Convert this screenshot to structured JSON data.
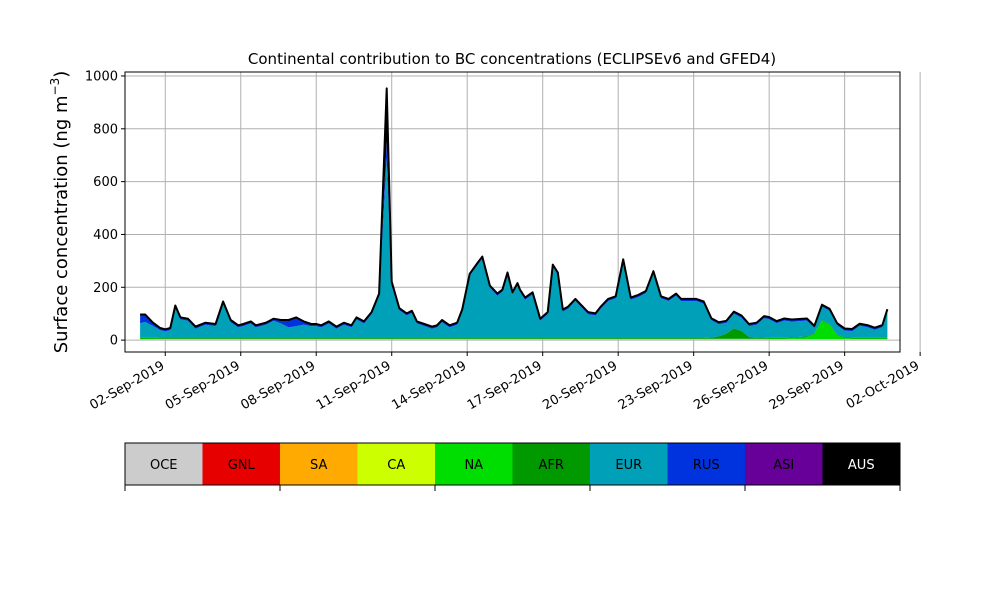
{
  "chart_data": {
    "type": "area",
    "stacked": true,
    "title": "Continental contribution to BC concentrations (ECLIPSEv6 and GFED4)",
    "xlabel": "",
    "ylabel": "Surface concentration (ng m",
    "ylabel_exponent": "−3",
    "ylabel_close": ")",
    "ylim": [
      -45,
      1015
    ],
    "xlim_day": [
      -0.6,
      30.2
    ],
    "yticks": [
      0,
      200,
      400,
      600,
      800,
      1000
    ],
    "ytick_labels": [
      "0",
      "200",
      "400",
      "600",
      "800",
      "1000"
    ],
    "xticks_day": [
      1,
      4,
      7,
      10,
      13,
      16,
      19,
      22,
      25,
      28,
      31
    ],
    "xtick_labels": [
      "02-Sep-2019",
      "05-Sep-2019",
      "08-Sep-2019",
      "11-Sep-2019",
      "14-Sep-2019",
      "17-Sep-2019",
      "20-Sep-2019",
      "23-Sep-2019",
      "26-Sep-2019",
      "29-Sep-2019",
      "02-Oct-2019"
    ],
    "grid": true,
    "x_unit": "days since 01-Sep-2019 00:00",
    "total_line_color": "#000000",
    "days": [
      0,
      0.2,
      0.5,
      0.8,
      1,
      1.2,
      1.4,
      1.6,
      1.9,
      2.2,
      2.6,
      3,
      3.3,
      3.6,
      3.9,
      4.1,
      4.4,
      4.6,
      4.8,
      5,
      5.3,
      5.6,
      5.9,
      6.2,
      6.5,
      6.8,
      7,
      7.2,
      7.5,
      7.8,
      8.1,
      8.4,
      8.6,
      8.9,
      9.2,
      9.5,
      9.8,
      10,
      10.3,
      10.6,
      10.8,
      11,
      11.3,
      11.6,
      11.8,
      12,
      12.3,
      12.6,
      12.8,
      13.1,
      13.4,
      13.6,
      13.9,
      14.2,
      14.4,
      14.6,
      14.8,
      15,
      15.1,
      15.3,
      15.6,
      15.9,
      16.2,
      16.4,
      16.6,
      16.8,
      17,
      17.3,
      17.5,
      17.8,
      18.1,
      18.3,
      18.6,
      18.9,
      19.2,
      19.5,
      19.8,
      20.1,
      20.4,
      20.7,
      21,
      21.3,
      21.5,
      21.8,
      22.1,
      22.4,
      22.7,
      23,
      23.3,
      23.6,
      23.9,
      24.2,
      24.5,
      24.8,
      25,
      25.3,
      25.6,
      25.9,
      26.2,
      26.5,
      26.8,
      27.1,
      27.4,
      27.7,
      28,
      28.3,
      28.6,
      28.9,
      29.2,
      29.5,
      29.7
    ],
    "series": [
      {
        "name": "OCE",
        "color": "#cccccc",
        "values": [
          2,
          2,
          2,
          2,
          2,
          2,
          2,
          2,
          2,
          2,
          2,
          2,
          2,
          2,
          2,
          2,
          2,
          2,
          2,
          2,
          2,
          2,
          2,
          2,
          2,
          2,
          2,
          2,
          2,
          2,
          2,
          2,
          2,
          2,
          2,
          2,
          2,
          2,
          2,
          2,
          2,
          2,
          2,
          2,
          2,
          2,
          2,
          2,
          2,
          2,
          2,
          2,
          2,
          2,
          2,
          2,
          2,
          2,
          2,
          2,
          2,
          2,
          2,
          2,
          2,
          2,
          2,
          2,
          2,
          2,
          2,
          2,
          2,
          2,
          2,
          2,
          2,
          2,
          2,
          2,
          2,
          2,
          2,
          2,
          2,
          2,
          2,
          2,
          2,
          2,
          2,
          2,
          2,
          2,
          2,
          2,
          2,
          2,
          2,
          2,
          2,
          2,
          2,
          2,
          2,
          2,
          2,
          2,
          2,
          2,
          2
        ]
      },
      {
        "name": "GNL",
        "color": "#e60000",
        "values": [
          0,
          0,
          0,
          0,
          0,
          0,
          0,
          0,
          0,
          0,
          0,
          0,
          0,
          0,
          0,
          0,
          0,
          0,
          0,
          0,
          0,
          0,
          0,
          0,
          0,
          0,
          0,
          0,
          0,
          0,
          0,
          0,
          0,
          0,
          0,
          0,
          0,
          0,
          0,
          0,
          0,
          0,
          0,
          0,
          0,
          0,
          0,
          0,
          0,
          0,
          0,
          0,
          0,
          0,
          0,
          0,
          0,
          0,
          0,
          0,
          0,
          0,
          0,
          0,
          0,
          0,
          0,
          0,
          0,
          0,
          0,
          0,
          0,
          0,
          0,
          0,
          0,
          0,
          0,
          0,
          0,
          0,
          0,
          0,
          0,
          0,
          0,
          0,
          0,
          0,
          0,
          0,
          0,
          0,
          0,
          0,
          0,
          0,
          0,
          0,
          0,
          0,
          0,
          0,
          0,
          0,
          0,
          0,
          0,
          0,
          0
        ]
      },
      {
        "name": "SA",
        "color": "#ffaa00",
        "values": [
          0,
          0,
          0,
          0,
          0,
          0,
          0,
          0,
          0,
          0,
          0,
          0,
          0,
          0,
          0,
          0,
          0,
          0,
          0,
          0,
          0,
          0,
          0,
          0,
          0,
          0,
          0,
          0,
          0,
          0,
          0,
          0,
          0,
          0,
          0,
          0,
          0,
          0,
          0,
          0,
          0,
          0,
          0,
          0,
          0,
          0,
          0,
          0,
          0,
          0,
          0,
          0,
          0,
          0,
          0,
          0,
          0,
          0,
          0,
          0,
          0,
          0,
          0,
          0,
          0,
          0,
          0,
          0,
          0,
          0,
          0,
          0,
          0,
          0,
          0,
          0,
          0,
          0,
          0,
          0,
          0,
          0,
          0,
          0,
          0,
          0,
          0,
          0,
          0,
          0,
          0,
          0,
          0,
          0,
          0,
          0,
          0,
          0,
          0,
          0,
          0,
          0,
          0,
          0,
          0,
          0,
          0,
          0,
          0,
          0,
          0
        ]
      },
      {
        "name": "CA",
        "color": "#ccff00",
        "values": [
          1,
          1,
          1,
          1,
          1,
          1,
          1,
          1,
          1,
          1,
          1,
          1,
          1,
          1,
          1,
          1,
          1,
          1,
          1,
          1,
          1,
          1,
          1,
          1,
          1,
          1,
          1,
          1,
          1,
          1,
          1,
          1,
          1,
          1,
          1,
          1,
          1,
          1,
          1,
          1,
          1,
          1,
          1,
          1,
          1,
          1,
          1,
          1,
          1,
          1,
          1,
          1,
          1,
          1,
          1,
          1,
          1,
          1,
          1,
          1,
          1,
          1,
          1,
          1,
          1,
          1,
          1,
          1,
          1,
          1,
          1,
          1,
          1,
          1,
          1,
          1,
          1,
          1,
          1,
          1,
          1,
          1,
          1,
          1,
          1,
          1,
          1,
          1,
          1,
          1,
          1,
          1,
          1,
          1,
          1,
          1,
          1,
          1,
          1,
          1,
          1,
          1,
          1,
          1,
          1,
          1,
          1,
          1,
          1,
          1,
          1
        ]
      },
      {
        "name": "NA",
        "color": "#00dd00",
        "values": [
          3,
          3,
          3,
          2,
          2,
          2,
          2,
          2,
          2,
          2,
          2,
          2,
          2,
          2,
          2,
          2,
          2,
          2,
          2,
          2,
          2,
          2,
          2,
          2,
          2,
          2,
          2,
          2,
          2,
          2,
          2,
          2,
          2,
          2,
          2,
          2,
          2,
          2,
          2,
          2,
          2,
          2,
          2,
          2,
          2,
          2,
          2,
          2,
          2,
          2,
          2,
          2,
          2,
          2,
          2,
          2,
          2,
          2,
          2,
          2,
          2,
          2,
          2,
          2,
          2,
          2,
          2,
          2,
          2,
          2,
          2,
          2,
          2,
          2,
          2,
          2,
          2,
          2,
          2,
          2,
          2,
          2,
          2,
          2,
          2,
          2,
          2,
          2,
          2,
          2,
          2,
          2,
          2,
          2,
          3,
          3,
          3,
          4,
          6,
          8,
          20,
          70,
          55,
          15,
          5,
          3,
          3,
          3,
          3,
          3,
          3
        ]
      },
      {
        "name": "AFR",
        "color": "#009900",
        "values": [
          3,
          3,
          3,
          3,
          3,
          3,
          3,
          3,
          3,
          3,
          3,
          3,
          3,
          3,
          3,
          3,
          3,
          3,
          3,
          3,
          3,
          3,
          3,
          3,
          3,
          3,
          3,
          3,
          3,
          3,
          3,
          3,
          3,
          3,
          3,
          3,
          3,
          3,
          3,
          3,
          3,
          3,
          3,
          3,
          3,
          3,
          3,
          3,
          3,
          3,
          3,
          3,
          3,
          3,
          3,
          3,
          3,
          3,
          3,
          3,
          3,
          3,
          3,
          3,
          3,
          3,
          3,
          3,
          3,
          3,
          3,
          3,
          3,
          3,
          3,
          3,
          3,
          3,
          3,
          3,
          3,
          3,
          3,
          3,
          3,
          3,
          5,
          10,
          20,
          40,
          30,
          8,
          3,
          3,
          3,
          3,
          3,
          3,
          3,
          3,
          3,
          3,
          3,
          3,
          3,
          3,
          3,
          3,
          3,
          3,
          3
        ]
      },
      {
        "name": "EUR",
        "color": "#00a0b8",
        "values": [
          55,
          60,
          45,
          30,
          25,
          30,
          115,
          70,
          65,
          35,
          50,
          45,
          130,
          60,
          40,
          45,
          55,
          40,
          45,
          50,
          65,
          55,
          40,
          45,
          50,
          45,
          45,
          40,
          55,
          35,
          50,
          40,
          70,
          55,
          90,
          160,
          680,
          195,
          105,
          85,
          95,
          55,
          45,
          35,
          40,
          60,
          40,
          50,
          100,
          235,
          275,
          300,
          190,
          160,
          175,
          240,
          165,
          200,
          175,
          145,
          165,
          65,
          90,
          270,
          240,
          100,
          110,
          140,
          120,
          90,
          85,
          110,
          140,
          150,
          290,
          145,
          155,
          170,
          245,
          150,
          140,
          160,
          140,
          140,
          140,
          130,
          65,
          45,
          40,
          55,
          50,
          40,
          50,
          75,
          70,
          55,
          65,
          60,
          60,
          60,
          20,
          50,
          50,
          35,
          25,
          25,
          45,
          40,
          30,
          40,
          100
        ]
      },
      {
        "name": "RUS",
        "color": "#0033dd",
        "values": [
          30,
          25,
          10,
          5,
          5,
          5,
          5,
          5,
          5,
          5,
          5,
          5,
          5,
          5,
          5,
          5,
          5,
          5,
          5,
          5,
          5,
          10,
          25,
          30,
          10,
          5,
          5,
          5,
          5,
          5,
          5,
          5,
          5,
          5,
          5,
          5,
          60,
          15,
          5,
          5,
          5,
          5,
          5,
          5,
          5,
          5,
          5,
          5,
          5,
          5,
          5,
          5,
          5,
          5,
          5,
          5,
          5,
          5,
          5,
          5,
          5,
          5,
          5,
          5,
          5,
          5,
          5,
          5,
          5,
          5,
          5,
          5,
          5,
          5,
          5,
          5,
          5,
          5,
          5,
          5,
          5,
          5,
          5,
          5,
          5,
          5,
          5,
          5,
          5,
          5,
          5,
          5,
          5,
          5,
          5,
          5,
          5,
          5,
          5,
          5,
          5,
          5,
          5,
          5,
          5,
          5,
          5,
          5,
          5,
          5,
          5
        ]
      },
      {
        "name": "ASI",
        "color": "#660099",
        "values": [
          3,
          3,
          3,
          3,
          3,
          3,
          3,
          3,
          3,
          3,
          3,
          3,
          3,
          3,
          3,
          3,
          3,
          3,
          3,
          3,
          3,
          3,
          3,
          3,
          3,
          3,
          3,
          3,
          3,
          3,
          3,
          3,
          3,
          3,
          3,
          3,
          5,
          3,
          3,
          3,
          3,
          3,
          3,
          3,
          3,
          3,
          3,
          3,
          3,
          3,
          3,
          3,
          3,
          3,
          3,
          3,
          3,
          3,
          3,
          3,
          3,
          3,
          3,
          3,
          3,
          3,
          3,
          3,
          3,
          3,
          3,
          3,
          3,
          3,
          3,
          3,
          3,
          3,
          3,
          3,
          3,
          3,
          3,
          3,
          3,
          3,
          3,
          3,
          3,
          3,
          3,
          3,
          3,
          3,
          3,
          3,
          3,
          3,
          3,
          3,
          3,
          3,
          3,
          3,
          3,
          3,
          3,
          3,
          3,
          3,
          3
        ]
      },
      {
        "name": "AUS",
        "color": "#000000",
        "values": [
          0,
          0,
          0,
          0,
          0,
          0,
          0,
          0,
          0,
          0,
          0,
          0,
          0,
          0,
          0,
          0,
          0,
          0,
          0,
          0,
          0,
          0,
          0,
          0,
          0,
          0,
          0,
          0,
          0,
          0,
          0,
          0,
          0,
          0,
          0,
          0,
          200,
          0,
          0,
          0,
          0,
          0,
          0,
          0,
          0,
          0,
          0,
          0,
          0,
          0,
          0,
          0,
          0,
          0,
          0,
          0,
          0,
          0,
          0,
          0,
          0,
          0,
          0,
          0,
          0,
          0,
          0,
          0,
          0,
          0,
          0,
          0,
          0,
          0,
          0,
          0,
          0,
          0,
          0,
          0,
          0,
          0,
          0,
          0,
          0,
          0,
          0,
          0,
          0,
          0,
          0,
          0,
          0,
          0,
          0,
          0,
          0,
          0,
          0,
          0,
          0,
          0,
          0,
          0,
          0,
          0,
          0,
          0,
          0,
          0,
          0
        ]
      }
    ]
  },
  "legend": {
    "items": [
      {
        "label": "OCE",
        "color": "#cccccc"
      },
      {
        "label": "GNL",
        "color": "#e60000"
      },
      {
        "label": "SA",
        "color": "#ffaa00"
      },
      {
        "label": "CA",
        "color": "#ccff00"
      },
      {
        "label": "NA",
        "color": "#00dd00"
      },
      {
        "label": "AFR",
        "color": "#009900"
      },
      {
        "label": "EUR",
        "color": "#00a0b8"
      },
      {
        "label": "RUS",
        "color": "#0033dd"
      },
      {
        "label": "ASI",
        "color": "#660099"
      },
      {
        "label": "AUS",
        "color": "#000000"
      }
    ]
  }
}
